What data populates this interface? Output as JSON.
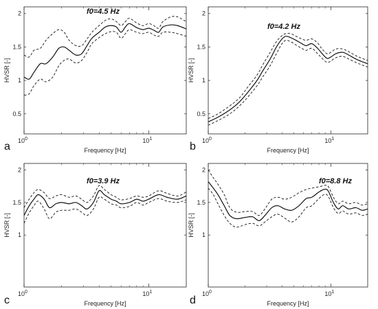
{
  "chart_data": [
    {
      "panel": "a",
      "type": "line",
      "annotation": "f0=4.5 Hz",
      "xlabel": "Frequency [Hz]",
      "ylabel": "HVSR [-]",
      "x_scale": "log",
      "xlim": [
        1,
        20
      ],
      "ylim": [
        0.2,
        2.1
      ],
      "yticks": [
        0.5,
        1,
        1.5,
        2
      ],
      "ytick_labels": [
        "0.5",
        "1",
        "1.5",
        "2"
      ],
      "xticks": [
        1,
        10
      ],
      "xtick_labels": [
        "10^0",
        "10^1"
      ],
      "grid": false,
      "series": [
        {
          "role": "mean",
          "style": "solid",
          "x": [
            1.0,
            1.1,
            1.2,
            1.35,
            1.5,
            1.7,
            1.9,
            2.1,
            2.3,
            2.6,
            2.9,
            3.2,
            3.5,
            4.0,
            4.5,
            5.0,
            5.5,
            6.0,
            6.5,
            7.0,
            8.0,
            9.0,
            10.0,
            11.0,
            12.0,
            13.0,
            15.0,
            17.0,
            20.0
          ],
          "y": [
            1.05,
            1.02,
            1.12,
            1.25,
            1.25,
            1.35,
            1.48,
            1.5,
            1.45,
            1.38,
            1.4,
            1.52,
            1.63,
            1.72,
            1.8,
            1.82,
            1.8,
            1.72,
            1.8,
            1.85,
            1.79,
            1.76,
            1.78,
            1.75,
            1.72,
            1.8,
            1.83,
            1.82,
            1.77
          ]
        },
        {
          "role": "upper",
          "style": "dashed",
          "x": [
            1.0,
            1.1,
            1.2,
            1.35,
            1.5,
            1.7,
            1.9,
            2.1,
            2.3,
            2.6,
            2.9,
            3.2,
            3.5,
            4.0,
            4.5,
            5.0,
            5.5,
            6.0,
            6.5,
            7.0,
            8.0,
            9.0,
            10.0,
            11.0,
            12.0,
            13.0,
            15.0,
            17.0,
            20.0
          ],
          "y": [
            1.38,
            1.35,
            1.45,
            1.48,
            1.6,
            1.7,
            1.76,
            1.72,
            1.6,
            1.52,
            1.52,
            1.62,
            1.72,
            1.82,
            1.9,
            1.92,
            1.88,
            1.82,
            1.88,
            1.93,
            1.86,
            1.82,
            1.85,
            1.82,
            1.78,
            1.88,
            1.95,
            1.95,
            1.88
          ]
        },
        {
          "role": "lower",
          "style": "dashed",
          "x": [
            1.0,
            1.1,
            1.2,
            1.35,
            1.5,
            1.7,
            1.9,
            2.1,
            2.3,
            2.6,
            2.9,
            3.2,
            3.5,
            4.0,
            4.5,
            5.0,
            5.5,
            6.0,
            6.5,
            7.0,
            8.0,
            9.0,
            10.0,
            11.0,
            12.0,
            13.0,
            15.0,
            17.0,
            20.0
          ],
          "y": [
            0.78,
            0.8,
            0.92,
            1.02,
            0.98,
            1.05,
            1.22,
            1.3,
            1.32,
            1.26,
            1.3,
            1.42,
            1.55,
            1.64,
            1.7,
            1.73,
            1.72,
            1.63,
            1.7,
            1.76,
            1.72,
            1.7,
            1.72,
            1.68,
            1.66,
            1.72,
            1.72,
            1.7,
            1.66
          ]
        }
      ]
    },
    {
      "panel": "b",
      "type": "line",
      "annotation": "f0=4.2 Hz",
      "xlabel": "Frequency [Hz]",
      "ylabel": "HVSR [-]",
      "x_scale": "log",
      "xlim": [
        1,
        20
      ],
      "ylim": [
        0.2,
        2.1
      ],
      "yticks": [
        0.5,
        1,
        1.5,
        2
      ],
      "ytick_labels": [
        "0.5",
        "1",
        "1.5",
        "2"
      ],
      "xticks": [
        1,
        10
      ],
      "xtick_labels": [
        "10^0",
        "10^1"
      ],
      "grid": false,
      "series": [
        {
          "role": "mean",
          "style": "solid",
          "x": [
            1.0,
            1.2,
            1.5,
            1.8,
            2.1,
            2.5,
            2.8,
            3.2,
            3.6,
            4.0,
            4.3,
            4.7,
            5.2,
            5.8,
            6.3,
            7.0,
            7.8,
            8.5,
            9.3,
            10.0,
            11.0,
            12.5,
            14.0,
            16.0,
            18.0,
            20.0
          ],
          "y": [
            0.38,
            0.45,
            0.56,
            0.68,
            0.82,
            1.0,
            1.15,
            1.32,
            1.5,
            1.62,
            1.66,
            1.64,
            1.6,
            1.55,
            1.52,
            1.55,
            1.48,
            1.4,
            1.33,
            1.35,
            1.4,
            1.42,
            1.38,
            1.32,
            1.28,
            1.25
          ]
        },
        {
          "role": "upper",
          "style": "dashed",
          "x": [
            1.0,
            1.2,
            1.5,
            1.8,
            2.1,
            2.5,
            2.8,
            3.2,
            3.6,
            4.0,
            4.3,
            4.7,
            5.2,
            5.8,
            6.3,
            7.0,
            7.8,
            8.5,
            9.3,
            10.0,
            11.0,
            12.5,
            14.0,
            16.0,
            18.0,
            20.0
          ],
          "y": [
            0.43,
            0.5,
            0.62,
            0.74,
            0.9,
            1.08,
            1.24,
            1.42,
            1.58,
            1.67,
            1.7,
            1.7,
            1.66,
            1.62,
            1.6,
            1.62,
            1.56,
            1.47,
            1.4,
            1.42,
            1.47,
            1.47,
            1.43,
            1.37,
            1.33,
            1.3
          ]
        },
        {
          "role": "lower",
          "style": "dashed",
          "x": [
            1.0,
            1.2,
            1.5,
            1.8,
            2.1,
            2.5,
            2.8,
            3.2,
            3.6,
            4.0,
            4.3,
            4.7,
            5.2,
            5.8,
            6.3,
            7.0,
            7.8,
            8.5,
            9.3,
            10.0,
            11.0,
            12.5,
            14.0,
            16.0,
            18.0,
            20.0
          ],
          "y": [
            0.33,
            0.4,
            0.5,
            0.62,
            0.75,
            0.92,
            1.06,
            1.22,
            1.4,
            1.55,
            1.6,
            1.58,
            1.53,
            1.48,
            1.45,
            1.48,
            1.4,
            1.33,
            1.27,
            1.29,
            1.34,
            1.36,
            1.32,
            1.27,
            1.23,
            1.2
          ]
        }
      ]
    },
    {
      "panel": "c",
      "type": "line",
      "annotation": "f0=3.9 Hz",
      "xlabel": "Frequency [Hz]",
      "ylabel": "HVSR [-]",
      "x_scale": "log",
      "xlim": [
        1,
        20
      ],
      "ylim": [
        0.2,
        2.1
      ],
      "yticks": [
        1,
        1.5,
        2
      ],
      "ytick_labels": [
        "1",
        "1.5",
        "2"
      ],
      "xticks": [
        1,
        10
      ],
      "xtick_labels": [
        "10^0",
        "10^1"
      ],
      "grid": false,
      "series": [
        {
          "role": "mean",
          "style": "solid",
          "x": [
            1.0,
            1.1,
            1.2,
            1.3,
            1.45,
            1.6,
            1.8,
            2.0,
            2.3,
            2.6,
            2.9,
            3.2,
            3.6,
            4.0,
            4.4,
            5.0,
            5.5,
            6.0,
            7.0,
            8.0,
            9.0,
            10.0,
            12.0,
            14.0,
            17.0,
            20.0
          ],
          "y": [
            1.3,
            1.45,
            1.55,
            1.62,
            1.55,
            1.42,
            1.48,
            1.5,
            1.48,
            1.5,
            1.45,
            1.4,
            1.5,
            1.68,
            1.62,
            1.55,
            1.52,
            1.48,
            1.5,
            1.55,
            1.52,
            1.55,
            1.62,
            1.58,
            1.55,
            1.6
          ]
        },
        {
          "role": "upper",
          "style": "dashed",
          "x": [
            1.0,
            1.1,
            1.2,
            1.3,
            1.45,
            1.6,
            1.8,
            2.0,
            2.3,
            2.6,
            2.9,
            3.2,
            3.6,
            4.0,
            4.4,
            5.0,
            5.5,
            6.0,
            7.0,
            8.0,
            9.0,
            10.0,
            12.0,
            14.0,
            17.0,
            20.0
          ],
          "y": [
            1.42,
            1.55,
            1.65,
            1.7,
            1.65,
            1.56,
            1.6,
            1.62,
            1.58,
            1.6,
            1.55,
            1.5,
            1.6,
            1.76,
            1.7,
            1.62,
            1.58,
            1.54,
            1.56,
            1.6,
            1.58,
            1.6,
            1.68,
            1.64,
            1.6,
            1.66
          ]
        },
        {
          "role": "lower",
          "style": "dashed",
          "x": [
            1.0,
            1.1,
            1.2,
            1.3,
            1.45,
            1.6,
            1.8,
            2.0,
            2.3,
            2.6,
            2.9,
            3.2,
            3.6,
            4.0,
            4.4,
            5.0,
            5.5,
            6.0,
            7.0,
            8.0,
            9.0,
            10.0,
            12.0,
            14.0,
            17.0,
            20.0
          ],
          "y": [
            1.18,
            1.34,
            1.45,
            1.52,
            1.4,
            1.25,
            1.35,
            1.38,
            1.38,
            1.4,
            1.35,
            1.3,
            1.4,
            1.58,
            1.55,
            1.48,
            1.46,
            1.42,
            1.44,
            1.5,
            1.46,
            1.5,
            1.56,
            1.52,
            1.5,
            1.54
          ]
        }
      ]
    },
    {
      "panel": "d",
      "type": "line",
      "annotation": "f0=8.8 Hz",
      "xlabel": "Frequency [Hz]",
      "ylabel": "HVSR [-]",
      "x_scale": "log",
      "xlim": [
        1,
        20
      ],
      "ylim": [
        0.2,
        2.1
      ],
      "yticks": [
        1,
        1.5,
        2
      ],
      "ytick_labels": [
        "1",
        "1.5",
        "2"
      ],
      "xticks": [
        1,
        10
      ],
      "xtick_labels": [
        "10^0",
        "10^1"
      ],
      "grid": false,
      "series": [
        {
          "role": "mean",
          "style": "solid",
          "x": [
            1.0,
            1.1,
            1.2,
            1.35,
            1.5,
            1.7,
            2.0,
            2.3,
            2.6,
            2.9,
            3.3,
            3.7,
            4.2,
            4.8,
            5.5,
            6.3,
            7.0,
            8.0,
            8.8,
            9.5,
            10.5,
            11.5,
            12.5,
            14.0,
            16.0,
            18.0,
            20.0
          ],
          "y": [
            1.82,
            1.72,
            1.62,
            1.45,
            1.3,
            1.25,
            1.27,
            1.28,
            1.22,
            1.3,
            1.42,
            1.45,
            1.4,
            1.38,
            1.45,
            1.56,
            1.58,
            1.66,
            1.7,
            1.68,
            1.5,
            1.4,
            1.45,
            1.4,
            1.42,
            1.38,
            1.4
          ]
        },
        {
          "role": "upper",
          "style": "dashed",
          "x": [
            1.0,
            1.1,
            1.2,
            1.35,
            1.5,
            1.7,
            2.0,
            2.3,
            2.6,
            2.9,
            3.3,
            3.7,
            4.2,
            4.8,
            5.5,
            6.3,
            7.0,
            8.0,
            8.8,
            9.5,
            10.5,
            11.5,
            12.5,
            14.0,
            16.0,
            18.0,
            20.0
          ],
          "y": [
            2.0,
            1.88,
            1.78,
            1.62,
            1.42,
            1.35,
            1.36,
            1.36,
            1.3,
            1.4,
            1.55,
            1.58,
            1.55,
            1.58,
            1.65,
            1.7,
            1.72,
            1.74,
            1.76,
            1.75,
            1.58,
            1.48,
            1.52,
            1.48,
            1.5,
            1.46,
            1.48
          ]
        },
        {
          "role": "lower",
          "style": "dashed",
          "x": [
            1.0,
            1.1,
            1.2,
            1.35,
            1.5,
            1.7,
            2.0,
            2.3,
            2.6,
            2.9,
            3.3,
            3.7,
            4.2,
            4.8,
            5.5,
            6.3,
            7.0,
            8.0,
            8.8,
            9.5,
            10.5,
            11.5,
            12.5,
            14.0,
            16.0,
            18.0,
            20.0
          ],
          "y": [
            1.72,
            1.62,
            1.48,
            1.3,
            1.18,
            1.12,
            1.16,
            1.18,
            1.14,
            1.2,
            1.28,
            1.32,
            1.26,
            1.2,
            1.28,
            1.42,
            1.45,
            1.56,
            1.62,
            1.6,
            1.42,
            1.33,
            1.37,
            1.32,
            1.34,
            1.3,
            1.32
          ]
        }
      ]
    }
  ]
}
